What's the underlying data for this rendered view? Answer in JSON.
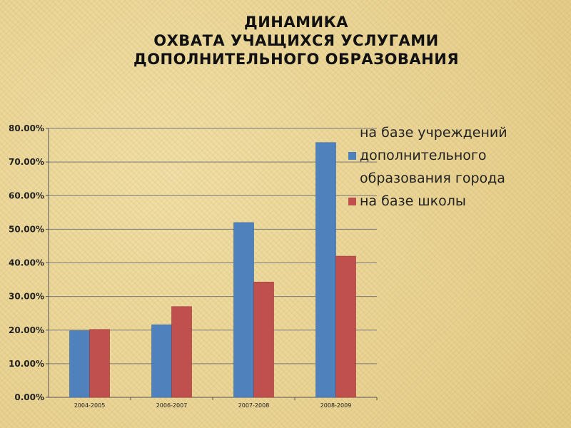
{
  "title": {
    "line1": "ДИНАМИКА",
    "line2": "ОХВАТА УЧАЩИХСЯ УСЛУГАМИ",
    "line3": "ДОПОЛНИТЕЛЬНОГО ОБРАЗОВАНИЯ"
  },
  "legend": {
    "series1_line1": "на базе учреждений",
    "series1_line2": "дополнительного",
    "series1_line3": "образования города",
    "series2": "на базе школы"
  },
  "colors": {
    "series1": "#4f81bd",
    "series2": "#c0504d",
    "grid": "#7a7a7a"
  },
  "chart_data": {
    "type": "bar",
    "categories": [
      "2004-2005",
      "2006-2007",
      "2007-2008",
      "2008-2009"
    ],
    "series": [
      {
        "name": "на базе учреждений дополнительного образования города",
        "values": [
          19.8,
          21.6,
          52.0,
          75.8
        ]
      },
      {
        "name": "на базе школы",
        "values": [
          20.2,
          27.0,
          34.3,
          42.0
        ]
      }
    ],
    "yticks": [
      "0.00%",
      "10.00%",
      "20.00%",
      "30.00%",
      "40.00%",
      "50.00%",
      "60.00%",
      "70.00%",
      "80.00%"
    ],
    "ylim": [
      0,
      80
    ],
    "grid": true,
    "legend_position": "top-right"
  }
}
